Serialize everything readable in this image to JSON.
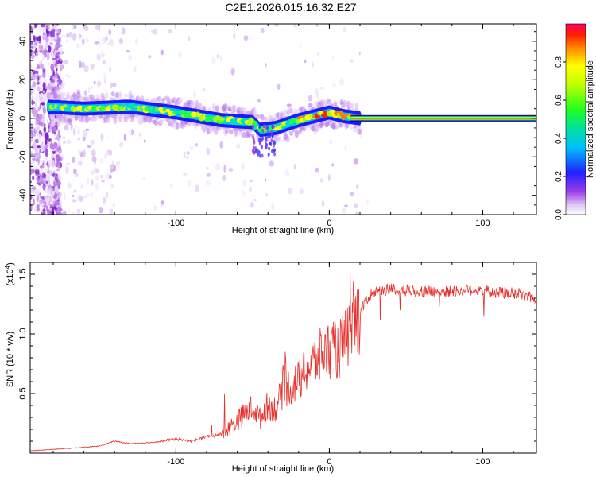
{
  "title": "C2E1.2026.015.16.32.E27",
  "chart_data": [
    {
      "type": "heatmap",
      "name": "spectrogram",
      "xlabel": "Height of straight line (km)",
      "ylabel": "Frequency (Hz)",
      "xlim": [
        -195,
        135
      ],
      "ylim": [
        -50,
        49
      ],
      "xticks": [
        -100,
        0,
        100
      ],
      "xtick_labels": [
        "-100",
        "0",
        "100"
      ],
      "yticks": [
        -40,
        -20,
        0,
        20,
        40
      ],
      "ytick_labels": [
        "-40",
        "-20",
        "0",
        "20",
        "40"
      ],
      "ridge": {
        "description_points": [
          {
            "x": -183,
            "y": 6
          },
          {
            "x": -160,
            "y": 5
          },
          {
            "x": -130,
            "y": 6
          },
          {
            "x": -100,
            "y": 3
          },
          {
            "x": -70,
            "y": -1
          },
          {
            "x": -50,
            "y": -2
          },
          {
            "x": -45,
            "y": -6
          },
          {
            "x": -35,
            "y": -5
          },
          {
            "x": -20,
            "y": -1
          },
          {
            "x": 0,
            "y": 3
          },
          {
            "x": 10,
            "y": 1
          },
          {
            "x": 20,
            "y": 0
          },
          {
            "x": 135,
            "y": 0
          }
        ]
      },
      "colorbar": {
        "label": "Normalized spectral amplitude",
        "range": [
          0,
          1
        ],
        "ticks": [
          0.0,
          0.2,
          0.4,
          0.6,
          0.8
        ],
        "tick_labels": [
          "0.0",
          "0.2",
          "0.4",
          "0.6",
          "0.8"
        ]
      }
    },
    {
      "type": "line",
      "name": "snr",
      "xlabel": "Height of straight line (km)",
      "ylabel": "SNR (10 * v/v)",
      "scale_label": "(x10",
      "scale_exponent": "4",
      "scale_suffix": ")",
      "xlim": [
        -195,
        135
      ],
      "ylim": [
        0,
        1.6
      ],
      "xticks": [
        -100,
        0,
        100
      ],
      "xtick_labels": [
        "-100",
        "0",
        "100"
      ],
      "yticks": [
        0.5,
        1.0,
        1.5
      ],
      "ytick_labels": [
        "0.5",
        "1.0",
        "1.5"
      ],
      "series": [
        {
          "name": "SNR",
          "color": "#e8302a",
          "x": [
            -195,
            -170,
            -150,
            -140,
            -130,
            -115,
            -100,
            -90,
            -80,
            -70,
            -60,
            -50,
            -45,
            -40,
            -35,
            -30,
            -25,
            -20,
            -15,
            -10,
            -5,
            0,
            5,
            10,
            15,
            20,
            25,
            30,
            40,
            60,
            80,
            95,
            110,
            125,
            135
          ],
          "y": [
            0.02,
            0.04,
            0.06,
            0.1,
            0.08,
            0.09,
            0.12,
            0.1,
            0.14,
            0.16,
            0.28,
            0.4,
            0.3,
            0.42,
            0.38,
            0.55,
            0.58,
            0.62,
            0.72,
            0.78,
            0.85,
            0.9,
            0.88,
            0.95,
            1.1,
            1.2,
            1.3,
            1.36,
            1.38,
            1.36,
            1.36,
            1.38,
            1.35,
            1.34,
            1.3
          ]
        }
      ]
    }
  ]
}
